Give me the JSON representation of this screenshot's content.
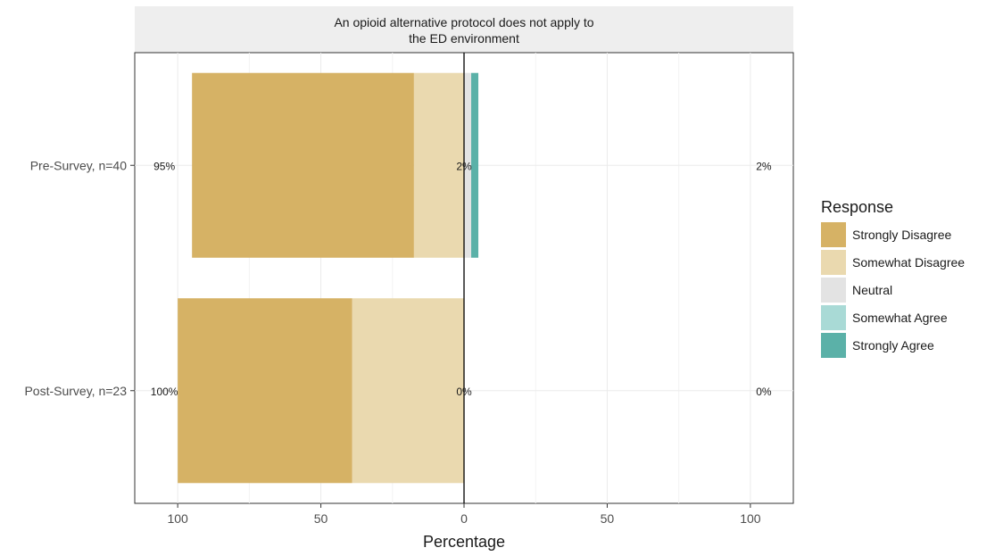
{
  "chart_data": {
    "type": "bar",
    "orientation": "horizontal-diverging",
    "title": "An opioid alternative protocol does not apply to the ED environment",
    "title_lines": [
      "An opioid alternative protocol does not apply to",
      "the ED environment"
    ],
    "xlabel": "Percentage",
    "ylabel": "",
    "xlim": [
      -115,
      115
    ],
    "x_ticks": [
      -100,
      -50,
      0,
      50,
      100
    ],
    "x_tick_labels": [
      "100",
      "50",
      "0",
      "50",
      "100"
    ],
    "categories": [
      "Pre-Survey, n=40",
      "Post-Survey, n=23"
    ],
    "series": [
      {
        "name": "Strongly Disagree",
        "values": [
          -77.5,
          -60.9
        ]
      },
      {
        "name": "Somewhat Disagree",
        "values": [
          -17.5,
          -39.1
        ]
      },
      {
        "name": "Neutral",
        "values": [
          2.5,
          0
        ]
      },
      {
        "name": "Somewhat Agree",
        "values": [
          0,
          0
        ]
      },
      {
        "name": "Strongly Agree",
        "values": [
          2.5,
          0
        ]
      }
    ],
    "data_labels": {
      "left": [
        "95%",
        "100%"
      ],
      "center": [
        "2%",
        "0%"
      ],
      "right": [
        "2%",
        "0%"
      ]
    },
    "legend": {
      "title": "Response",
      "position": "right",
      "items": [
        "Strongly Disagree",
        "Somewhat Disagree",
        "Neutral",
        "Somewhat Agree",
        "Strongly Agree"
      ]
    },
    "colors": {
      "Strongly Disagree": "#D6B265",
      "Somewhat Disagree": "#EAD9AF",
      "Neutral": "#E3E3E3",
      "Somewhat Agree": "#A9DAD6",
      "Strongly Agree": "#5BB1A8"
    },
    "grid": true
  }
}
